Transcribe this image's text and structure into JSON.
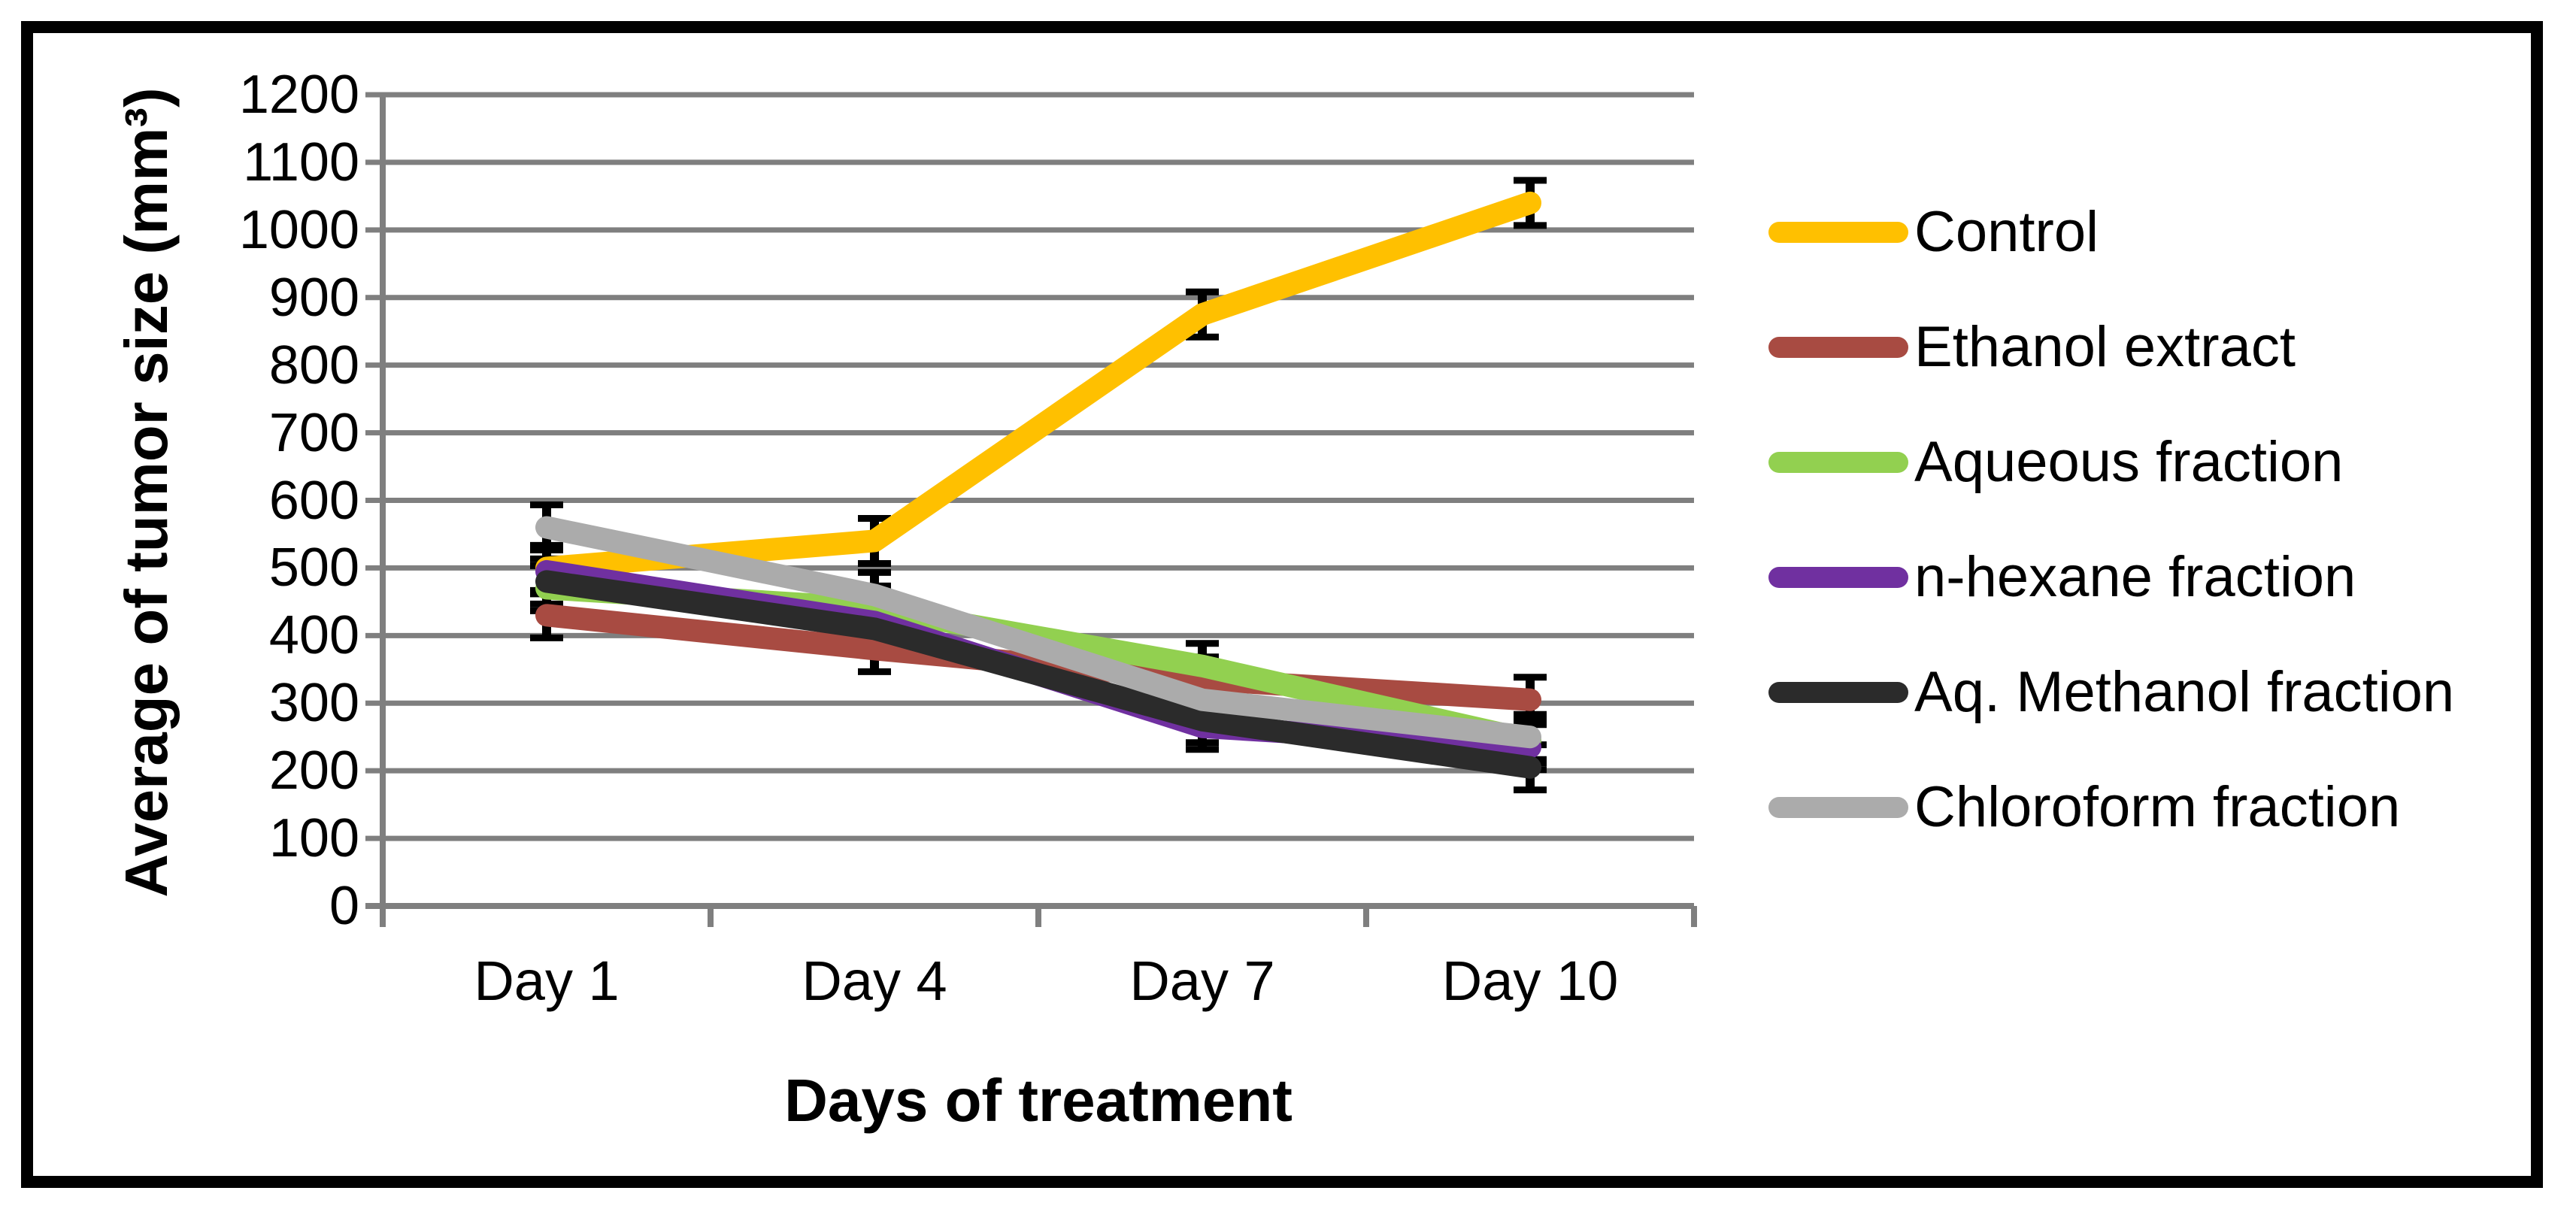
{
  "figure": {
    "x_axis_title": "Days of treatment",
    "y_axis_title": "Average of tumor size (mm³)"
  },
  "chart_data": {
    "type": "line",
    "title": "",
    "xlabel": "Days of treatment",
    "ylabel": "Average of tumor size (mm³)",
    "categories": [
      "Day 1",
      "Day 4",
      "Day 7",
      "Day 10"
    ],
    "ylim": [
      0,
      1200
    ],
    "ytick_step": 100,
    "grid": true,
    "error_bars": true,
    "legend_position": "right",
    "series": [
      {
        "name": "Control",
        "color": "#FFC000",
        "values": [
          500,
          540,
          875,
          1040
        ]
      },
      {
        "name": "Ethanol extract",
        "color": "#A84B42",
        "values": [
          430,
          380,
          335,
          305
        ]
      },
      {
        "name": "Aqueous fraction",
        "color": "#92D050",
        "values": [
          470,
          440,
          355,
          245
        ]
      },
      {
        "name": "n-hexane fraction",
        "color": "#7030A0",
        "values": [
          495,
          420,
          265,
          235
        ]
      },
      {
        "name": "Aq. Methanol fraction",
        "color": "#2B2B2B",
        "values": [
          480,
          410,
          275,
          205
        ]
      },
      {
        "name": "Chloroform fraction",
        "color": "#ABABAB",
        "values": [
          560,
          460,
          305,
          250
        ]
      }
    ],
    "colors": {
      "gridline": "#7F7F7F",
      "axis": "#7F7F7F",
      "error_bar": "#000000",
      "frame": "#000000",
      "background": "#FFFFFF"
    }
  }
}
